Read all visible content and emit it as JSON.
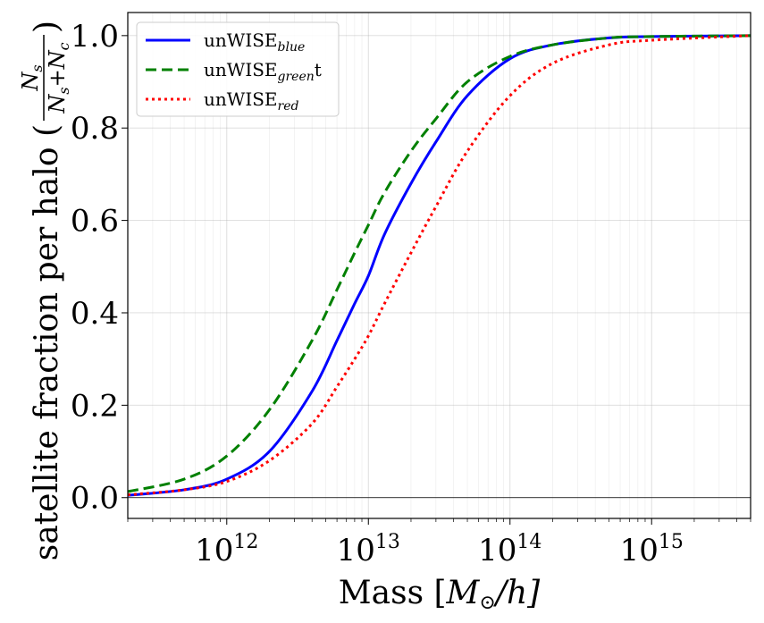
{
  "chart_data": {
    "type": "line",
    "xlabel": {
      "main": "Mass [",
      "var": "M",
      "sub": "⊙",
      "tail": "/h]"
    },
    "ylabel": {
      "main": "satellite fraction per halo (",
      "frac_num": "N",
      "frac_num_sub": "s",
      "frac_den": "N",
      "frac_den_sub1": "s",
      "frac_den_plus": "+N",
      "frac_den_sub2": "c",
      "tail": ")"
    },
    "x_scale": "log",
    "xlim": [
      200000000000.0,
      5000000000000000.0
    ],
    "ylim": [
      -0.045,
      1.05
    ],
    "x_ticks": [
      {
        "base": "10",
        "exp": "12",
        "value": 1000000000000.0
      },
      {
        "base": "10",
        "exp": "13",
        "value": 10000000000000.0
      },
      {
        "base": "10",
        "exp": "14",
        "value": 100000000000000.0
      },
      {
        "base": "10",
        "exp": "15",
        "value": 1000000000000000.0
      }
    ],
    "y_ticks": [
      {
        "label": "0.0",
        "value": 0.0
      },
      {
        "label": "0.2",
        "value": 0.2
      },
      {
        "label": "0.4",
        "value": 0.4
      },
      {
        "label": "0.6",
        "value": 0.6
      },
      {
        "label": "0.8",
        "value": 0.8
      },
      {
        "label": "1.0",
        "value": 1.0
      }
    ],
    "grid": true,
    "legend_position": "top-left",
    "series": [
      {
        "name": "unWISEblue",
        "label_main": "unWISE",
        "label_sub": "blue",
        "label_tail": "",
        "color": "#0000ff",
        "dash": "solid",
        "x": [
          200000000000.0,
          500000000000.0,
          1000000000000.0,
          2000000000000.0,
          4000000000000.0,
          6000000000000.0,
          8000000000000.0,
          10000000000000.0,
          13000000000000.0,
          20000000000000.0,
          30000000000000.0,
          50000000000000.0,
          100000000000000.0,
          200000000000000.0,
          500000000000000.0,
          1000000000000000.0,
          5000000000000000.0
        ],
        "y": [
          0.005,
          0.017,
          0.04,
          0.1,
          0.23,
          0.34,
          0.42,
          0.48,
          0.57,
          0.68,
          0.77,
          0.87,
          0.95,
          0.98,
          0.995,
          0.998,
          1.0
        ]
      },
      {
        "name": "unWISEgreent",
        "label_main": "unWISE",
        "label_sub": "green",
        "label_tail": "t",
        "color": "#008000",
        "dash": "dashed",
        "x": [
          200000000000.0,
          500000000000.0,
          1000000000000.0,
          2000000000000.0,
          4000000000000.0,
          6000000000000.0,
          8000000000000.0,
          10000000000000.0,
          13000000000000.0,
          20000000000000.0,
          30000000000000.0,
          50000000000000.0,
          100000000000000.0,
          200000000000000.0,
          500000000000000.0,
          1000000000000000.0,
          5000000000000000.0
        ],
        "y": [
          0.013,
          0.04,
          0.09,
          0.19,
          0.34,
          0.45,
          0.53,
          0.59,
          0.66,
          0.75,
          0.82,
          0.9,
          0.955,
          0.98,
          0.995,
          0.998,
          1.0
        ]
      },
      {
        "name": "unWISEred",
        "label_main": "unWISE",
        "label_sub": "red",
        "label_tail": "",
        "color": "#ff0000",
        "dash": "dotted",
        "x": [
          200000000000.0,
          500000000000.0,
          1000000000000.0,
          2000000000000.0,
          4000000000000.0,
          6000000000000.0,
          8000000000000.0,
          10000000000000.0,
          13000000000000.0,
          20000000000000.0,
          30000000000000.0,
          50000000000000.0,
          100000000000000.0,
          200000000000000.0,
          500000000000000.0,
          1000000000000000.0,
          5000000000000000.0
        ],
        "y": [
          0.006,
          0.017,
          0.035,
          0.08,
          0.16,
          0.24,
          0.3,
          0.35,
          0.42,
          0.53,
          0.63,
          0.75,
          0.87,
          0.94,
          0.98,
          0.99,
          1.0
        ]
      }
    ]
  }
}
